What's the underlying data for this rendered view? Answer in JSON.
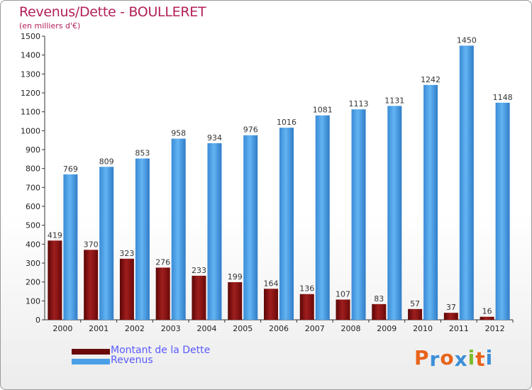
{
  "chart_data": {
    "type": "bar",
    "title": "Revenus/Dette - BOULLERET",
    "subtitle": "(en milliers d'€)",
    "categories": [
      "2000",
      "2001",
      "2002",
      "2003",
      "2004",
      "2005",
      "2006",
      "2007",
      "2008",
      "2009",
      "2010",
      "2011",
      "2012"
    ],
    "series": [
      {
        "name": "Montant de la Dette",
        "color": "#7a0f0f",
        "values": [
          419,
          370,
          323,
          276,
          233,
          199,
          164,
          136,
          107,
          83,
          57,
          37,
          16
        ]
      },
      {
        "name": "Revenus",
        "color": "#4aa0e6",
        "values": [
          769,
          809,
          853,
          958,
          934,
          976,
          1016,
          1081,
          1113,
          1131,
          1242,
          1450,
          1148
        ]
      }
    ],
    "yticks": [
      0,
      100,
      200,
      300,
      400,
      500,
      600,
      700,
      800,
      900,
      1000,
      1100,
      1200,
      1300,
      1400,
      1500
    ],
    "ylim": [
      0,
      1500
    ],
    "grid": false,
    "legend_position": "bottom-left"
  },
  "logo": {
    "text": "Proxiti",
    "colors": [
      "#e8631b",
      "#3c8fd8",
      "#e8631b",
      "#3c8fd8",
      "#7dba2b",
      "#e8631b",
      "#3c8fd8"
    ]
  }
}
